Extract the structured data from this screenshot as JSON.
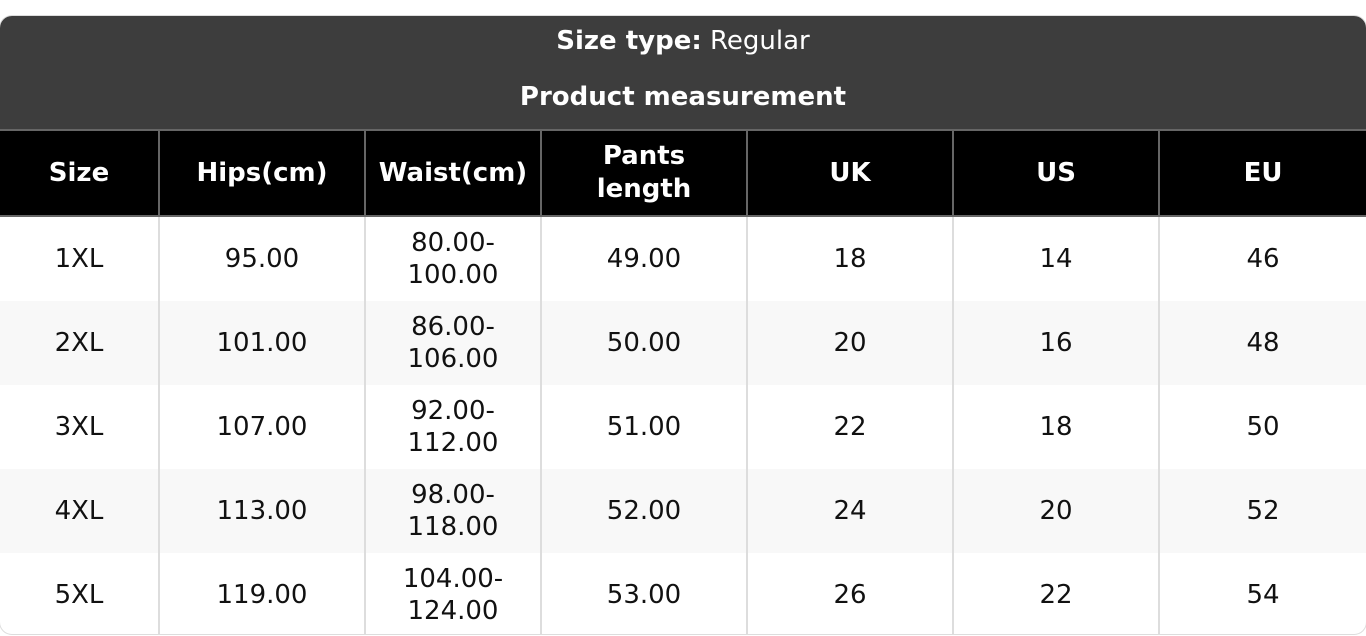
{
  "header": {
    "size_type_label": "Size type:",
    "size_type_value": "Regular",
    "subtitle": "Product measurement"
  },
  "table": {
    "columns": [
      "Size",
      "Hips(cm)",
      "Waist(cm)",
      "Pants length",
      "UK",
      "US",
      "EU"
    ],
    "rows": [
      [
        "1XL",
        "95.00",
        "80.00-100.00",
        "49.00",
        "18",
        "14",
        "46"
      ],
      [
        "2XL",
        "101.00",
        "86.00-106.00",
        "50.00",
        "20",
        "16",
        "48"
      ],
      [
        "3XL",
        "107.00",
        "92.00-112.00",
        "51.00",
        "22",
        "18",
        "50"
      ],
      [
        "4XL",
        "113.00",
        "98.00-118.00",
        "52.00",
        "24",
        "20",
        "52"
      ],
      [
        "5XL",
        "119.00",
        "104.00-124.00",
        "53.00",
        "26",
        "22",
        "54"
      ]
    ]
  },
  "colors": {
    "header_bg": "#3d3d3d",
    "column_header_bg": "#000000",
    "alt_row_bg": "#f8f8f8"
  }
}
